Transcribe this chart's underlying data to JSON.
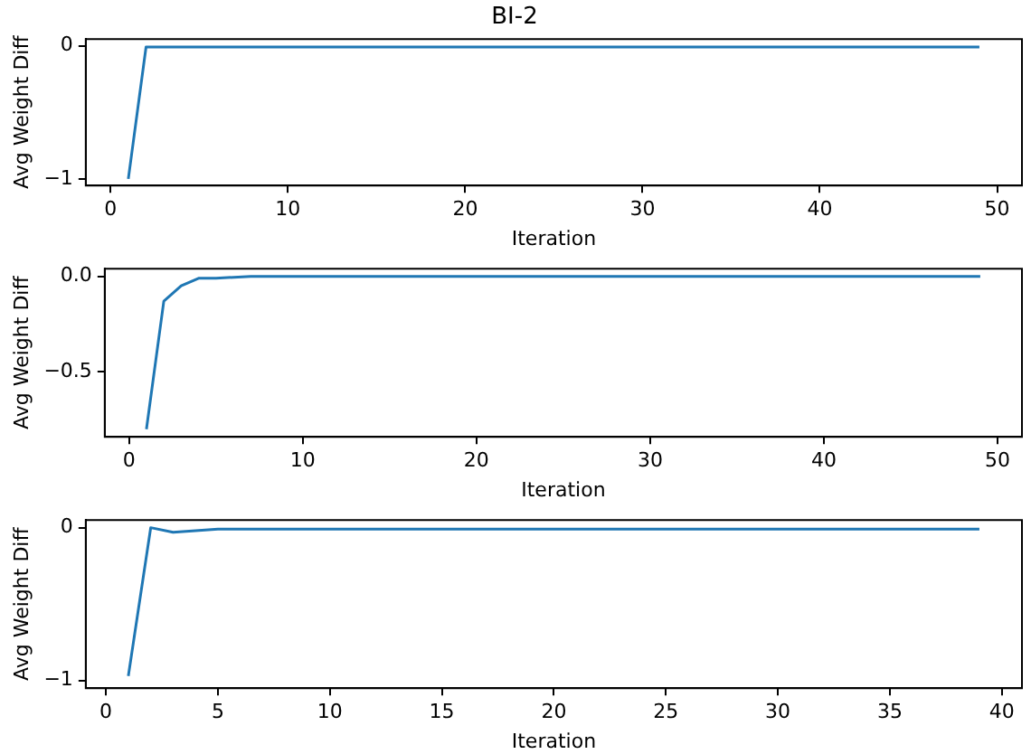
{
  "chart_data": [
    {
      "type": "line",
      "title": "BI-2",
      "xlabel": "Iteration",
      "ylabel": "Avg Weight Diff",
      "x": [
        1,
        2,
        3,
        4,
        5,
        10,
        49
      ],
      "series": [
        {
          "color": "#1f77b4",
          "values": [
            -1,
            -0.01,
            -0.01,
            -0.01,
            -0.01,
            -0.01,
            -0.01
          ]
        }
      ],
      "xlim": [
        -1.4,
        51.4
      ],
      "xticks": [
        0,
        10,
        20,
        30,
        40,
        50
      ],
      "ylim": [
        -1.05,
        0.05
      ],
      "yticks": [
        {
          "value": -1,
          "label": "−1"
        },
        0
      ],
      "grid": false,
      "legend": false,
      "marker": "none"
    },
    {
      "type": "line",
      "xlabel": "Iteration",
      "ylabel": "Avg Weight Diff",
      "x": [
        1,
        2,
        3,
        4,
        5,
        7,
        10,
        49
      ],
      "series": [
        {
          "color": "#1f77b4",
          "values": [
            -0.8,
            -0.13,
            -0.05,
            -0.01,
            -0.01,
            0,
            0,
            0
          ]
        }
      ],
      "xlim": [
        -1.4,
        51.4
      ],
      "xticks": [
        0,
        10,
        20,
        30,
        40,
        50
      ],
      "ylim": [
        -0.84,
        0.04
      ],
      "yticks": [
        {
          "value": -0.5,
          "label": "−0.5"
        },
        {
          "value": 0,
          "label": "0.0"
        }
      ],
      "grid": false,
      "legend": false,
      "marker": "none"
    },
    {
      "type": "line",
      "xlabel": "Iteration",
      "ylabel": "Avg Weight Diff",
      "x": [
        1,
        2,
        3,
        4,
        5,
        7,
        10,
        39
      ],
      "series": [
        {
          "color": "#1f77b4",
          "values": [
            -0.97,
            0,
            -0.03,
            -0.02,
            -0.01,
            -0.01,
            -0.01,
            -0.01
          ]
        }
      ],
      "xlim": [
        -0.9,
        40.9
      ],
      "xticks": [
        0,
        5,
        10,
        15,
        20,
        25,
        30,
        35,
        40
      ],
      "ylim": [
        -1.05,
        0.05
      ],
      "yticks": [
        {
          "value": -1,
          "label": "−1"
        },
        0
      ],
      "grid": false,
      "legend": false,
      "marker": "none"
    }
  ]
}
